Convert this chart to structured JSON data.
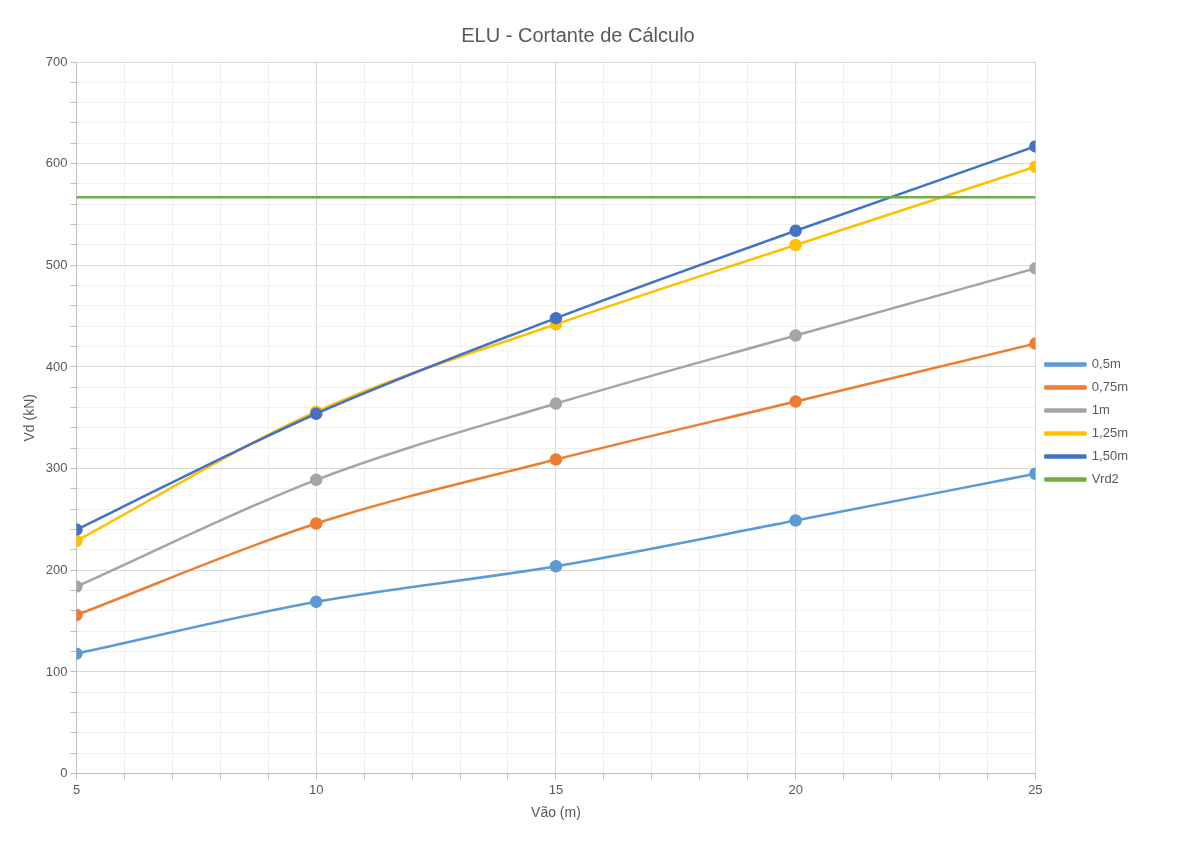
{
  "chart_data": {
    "type": "line",
    "title": "ELU - Cortante de Cálculo",
    "xlabel": "Vão (m)",
    "ylabel": "Vd (kN)",
    "x": [
      5,
      10,
      15,
      20,
      25
    ],
    "series": [
      {
        "name": "0,5m",
        "color": "#5b9bd5",
        "values": [
          118,
          169,
          204,
          249,
          295
        ]
      },
      {
        "name": "0,75m",
        "color": "#ed7d31",
        "values": [
          156,
          246,
          309,
          366,
          423
        ]
      },
      {
        "name": "1m",
        "color": "#a5a5a5",
        "values": [
          184,
          289,
          364,
          431,
          497
        ]
      },
      {
        "name": "1,25m",
        "color": "#ffc000",
        "values": [
          229,
          356,
          442,
          520,
          597
        ]
      },
      {
        "name": "1,50m",
        "color": "#4472c4",
        "values": [
          240,
          354,
          448,
          534,
          617
        ]
      },
      {
        "name": "Vrd2",
        "color": "#70ad47",
        "values": [
          567,
          567,
          567,
          567,
          567
        ],
        "marker": "none"
      }
    ],
    "xlim": [
      5,
      25
    ],
    "xticks": [
      5,
      {
        "value": 6,
        "label": null
      },
      {
        "value": 7,
        "label": null
      },
      {
        "value": 8,
        "label": null
      },
      {
        "value": 9,
        "label": null
      },
      10,
      {
        "value": 11,
        "label": null
      },
      {
        "value": 12,
        "label": null
      },
      {
        "value": 13,
        "label": null
      },
      {
        "value": 14,
        "label": null
      },
      15,
      {
        "value": 16,
        "label": null
      },
      {
        "value": 17,
        "label": null
      },
      {
        "value": 18,
        "label": null
      },
      {
        "value": 19,
        "label": null
      },
      20,
      {
        "value": 21,
        "label": null
      },
      {
        "value": 22,
        "label": null
      },
      {
        "value": 23,
        "label": null
      },
      {
        "value": 24,
        "label": null
      },
      25
    ],
    "ylim": [
      0,
      700
    ],
    "yticks": [
      0,
      {
        "value": 20,
        "label": null
      },
      {
        "value": 40,
        "label": null
      },
      {
        "value": 60,
        "label": null
      },
      {
        "value": 80,
        "label": null
      },
      100,
      {
        "value": 120,
        "label": null
      },
      {
        "value": 140,
        "label": null
      },
      {
        "value": 160,
        "label": null
      },
      {
        "value": 180,
        "label": null
      },
      200,
      {
        "value": 220,
        "label": null
      },
      {
        "value": 240,
        "label": null
      },
      {
        "value": 260,
        "label": null
      },
      {
        "value": 280,
        "label": null
      },
      300,
      {
        "value": 320,
        "label": null
      },
      {
        "value": 340,
        "label": null
      },
      {
        "value": 360,
        "label": null
      },
      {
        "value": 380,
        "label": null
      },
      400,
      {
        "value": 420,
        "label": null
      },
      {
        "value": 440,
        "label": null
      },
      {
        "value": 460,
        "label": null
      },
      {
        "value": 480,
        "label": null
      },
      500,
      {
        "value": 520,
        "label": null
      },
      {
        "value": 540,
        "label": null
      },
      {
        "value": 560,
        "label": null
      },
      {
        "value": 580,
        "label": null
      },
      600,
      {
        "value": 620,
        "label": null
      },
      {
        "value": 640,
        "label": null
      },
      {
        "value": 660,
        "label": null
      },
      {
        "value": 680,
        "label": null
      },
      700
    ],
    "grid": true,
    "legend": "right",
    "marker": "circle",
    "line_style": "solid"
  }
}
